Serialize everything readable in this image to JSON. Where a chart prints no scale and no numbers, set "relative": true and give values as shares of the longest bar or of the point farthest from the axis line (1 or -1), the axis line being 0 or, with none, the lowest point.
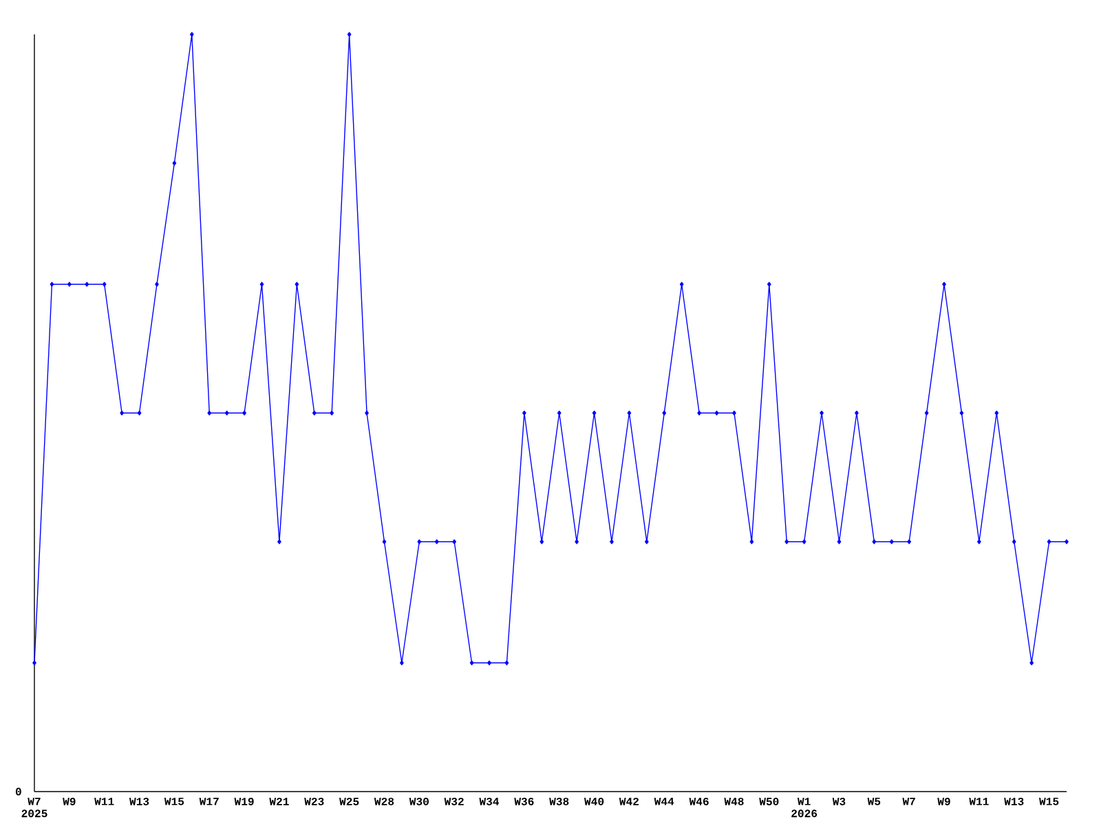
{
  "chart_data": {
    "type": "line",
    "relative": true,
    "color": "#0000ff",
    "marker": "diamond",
    "line_style": "solid",
    "annotations": [
      "0"
    ],
    "categories": [
      "W7 2025",
      null,
      "W9",
      null,
      "W11",
      null,
      "W13",
      null,
      "W15",
      null,
      "W17",
      null,
      "W19",
      null,
      "W21",
      null,
      "W23",
      null,
      "W25",
      null,
      "W28",
      null,
      "W30",
      null,
      "W32",
      null,
      "W34",
      null,
      "W36",
      null,
      "W38",
      null,
      "W40",
      null,
      "W42",
      null,
      "W44",
      null,
      "W46",
      null,
      "W48",
      null,
      "W50",
      null,
      "W1 2026",
      null,
      "W3",
      null,
      "W5",
      null,
      "W7",
      null,
      "W9",
      null,
      "W11",
      null,
      "W13",
      null,
      "W15",
      null
    ],
    "values": [
      0.17,
      0.67,
      0.67,
      0.67,
      0.67,
      0.5,
      0.5,
      0.67,
      0.83,
      1,
      0.5,
      0.5,
      0.5,
      0.67,
      0.33,
      0.67,
      0.5,
      0.5,
      1,
      0.5,
      0.33,
      0.17,
      0.33,
      0.33,
      0.33,
      0.17,
      0.17,
      0.17,
      0.5,
      0.33,
      0.5,
      0.33,
      0.5,
      0.33,
      0.5,
      0.33,
      0.5,
      0.67,
      0.5,
      0.5,
      0.5,
      0.33,
      0.67,
      0.33,
      0.33,
      0.5,
      0.33,
      0.5,
      0.33,
      0.33,
      0.33,
      0.5,
      0.67,
      0.5,
      0.33,
      0.5,
      0.33,
      0.17,
      0.33,
      0.33
    ]
  }
}
